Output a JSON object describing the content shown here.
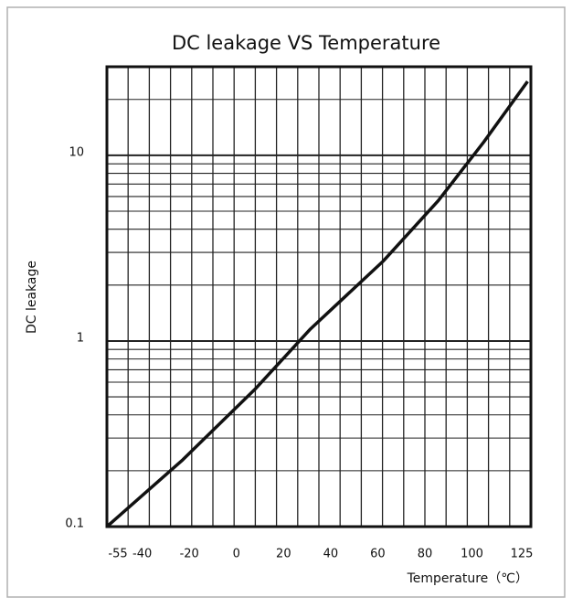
{
  "chart_data": {
    "type": "line",
    "title": "DC leakage VS Temperature",
    "x_label": "Temperature（℃）",
    "y_label": "DC leakage",
    "y_log": true,
    "grid": true,
    "xlim": [
      -55,
      125
    ],
    "ylim": [
      0.1,
      30
    ],
    "xticks": [
      -55,
      -40,
      -20,
      0,
      20,
      40,
      60,
      80,
      100,
      125
    ],
    "yticks": [
      0.1,
      1,
      10
    ],
    "x_grid": [
      -46,
      -37,
      -28,
      -19,
      -10,
      -1,
      8,
      17,
      26,
      35,
      44,
      53,
      62,
      71,
      80,
      89,
      98,
      107,
      116
    ],
    "y_minor_grid": [
      0.2,
      0.3,
      0.4,
      0.5,
      0.6,
      0.7,
      0.8,
      0.9,
      2,
      3,
      4,
      5,
      6,
      7,
      8,
      9,
      20
    ],
    "series": [
      {
        "name": "DC leakage",
        "color": "#111111",
        "x": [
          -55,
          -22.8,
          8.2,
          31.4,
          62.4,
          85.7,
          105,
          123.6
        ],
        "values": [
          0.1,
          0.229,
          0.555,
          1.16,
          2.7,
          5.7,
          11.8,
          25
        ]
      }
    ]
  }
}
